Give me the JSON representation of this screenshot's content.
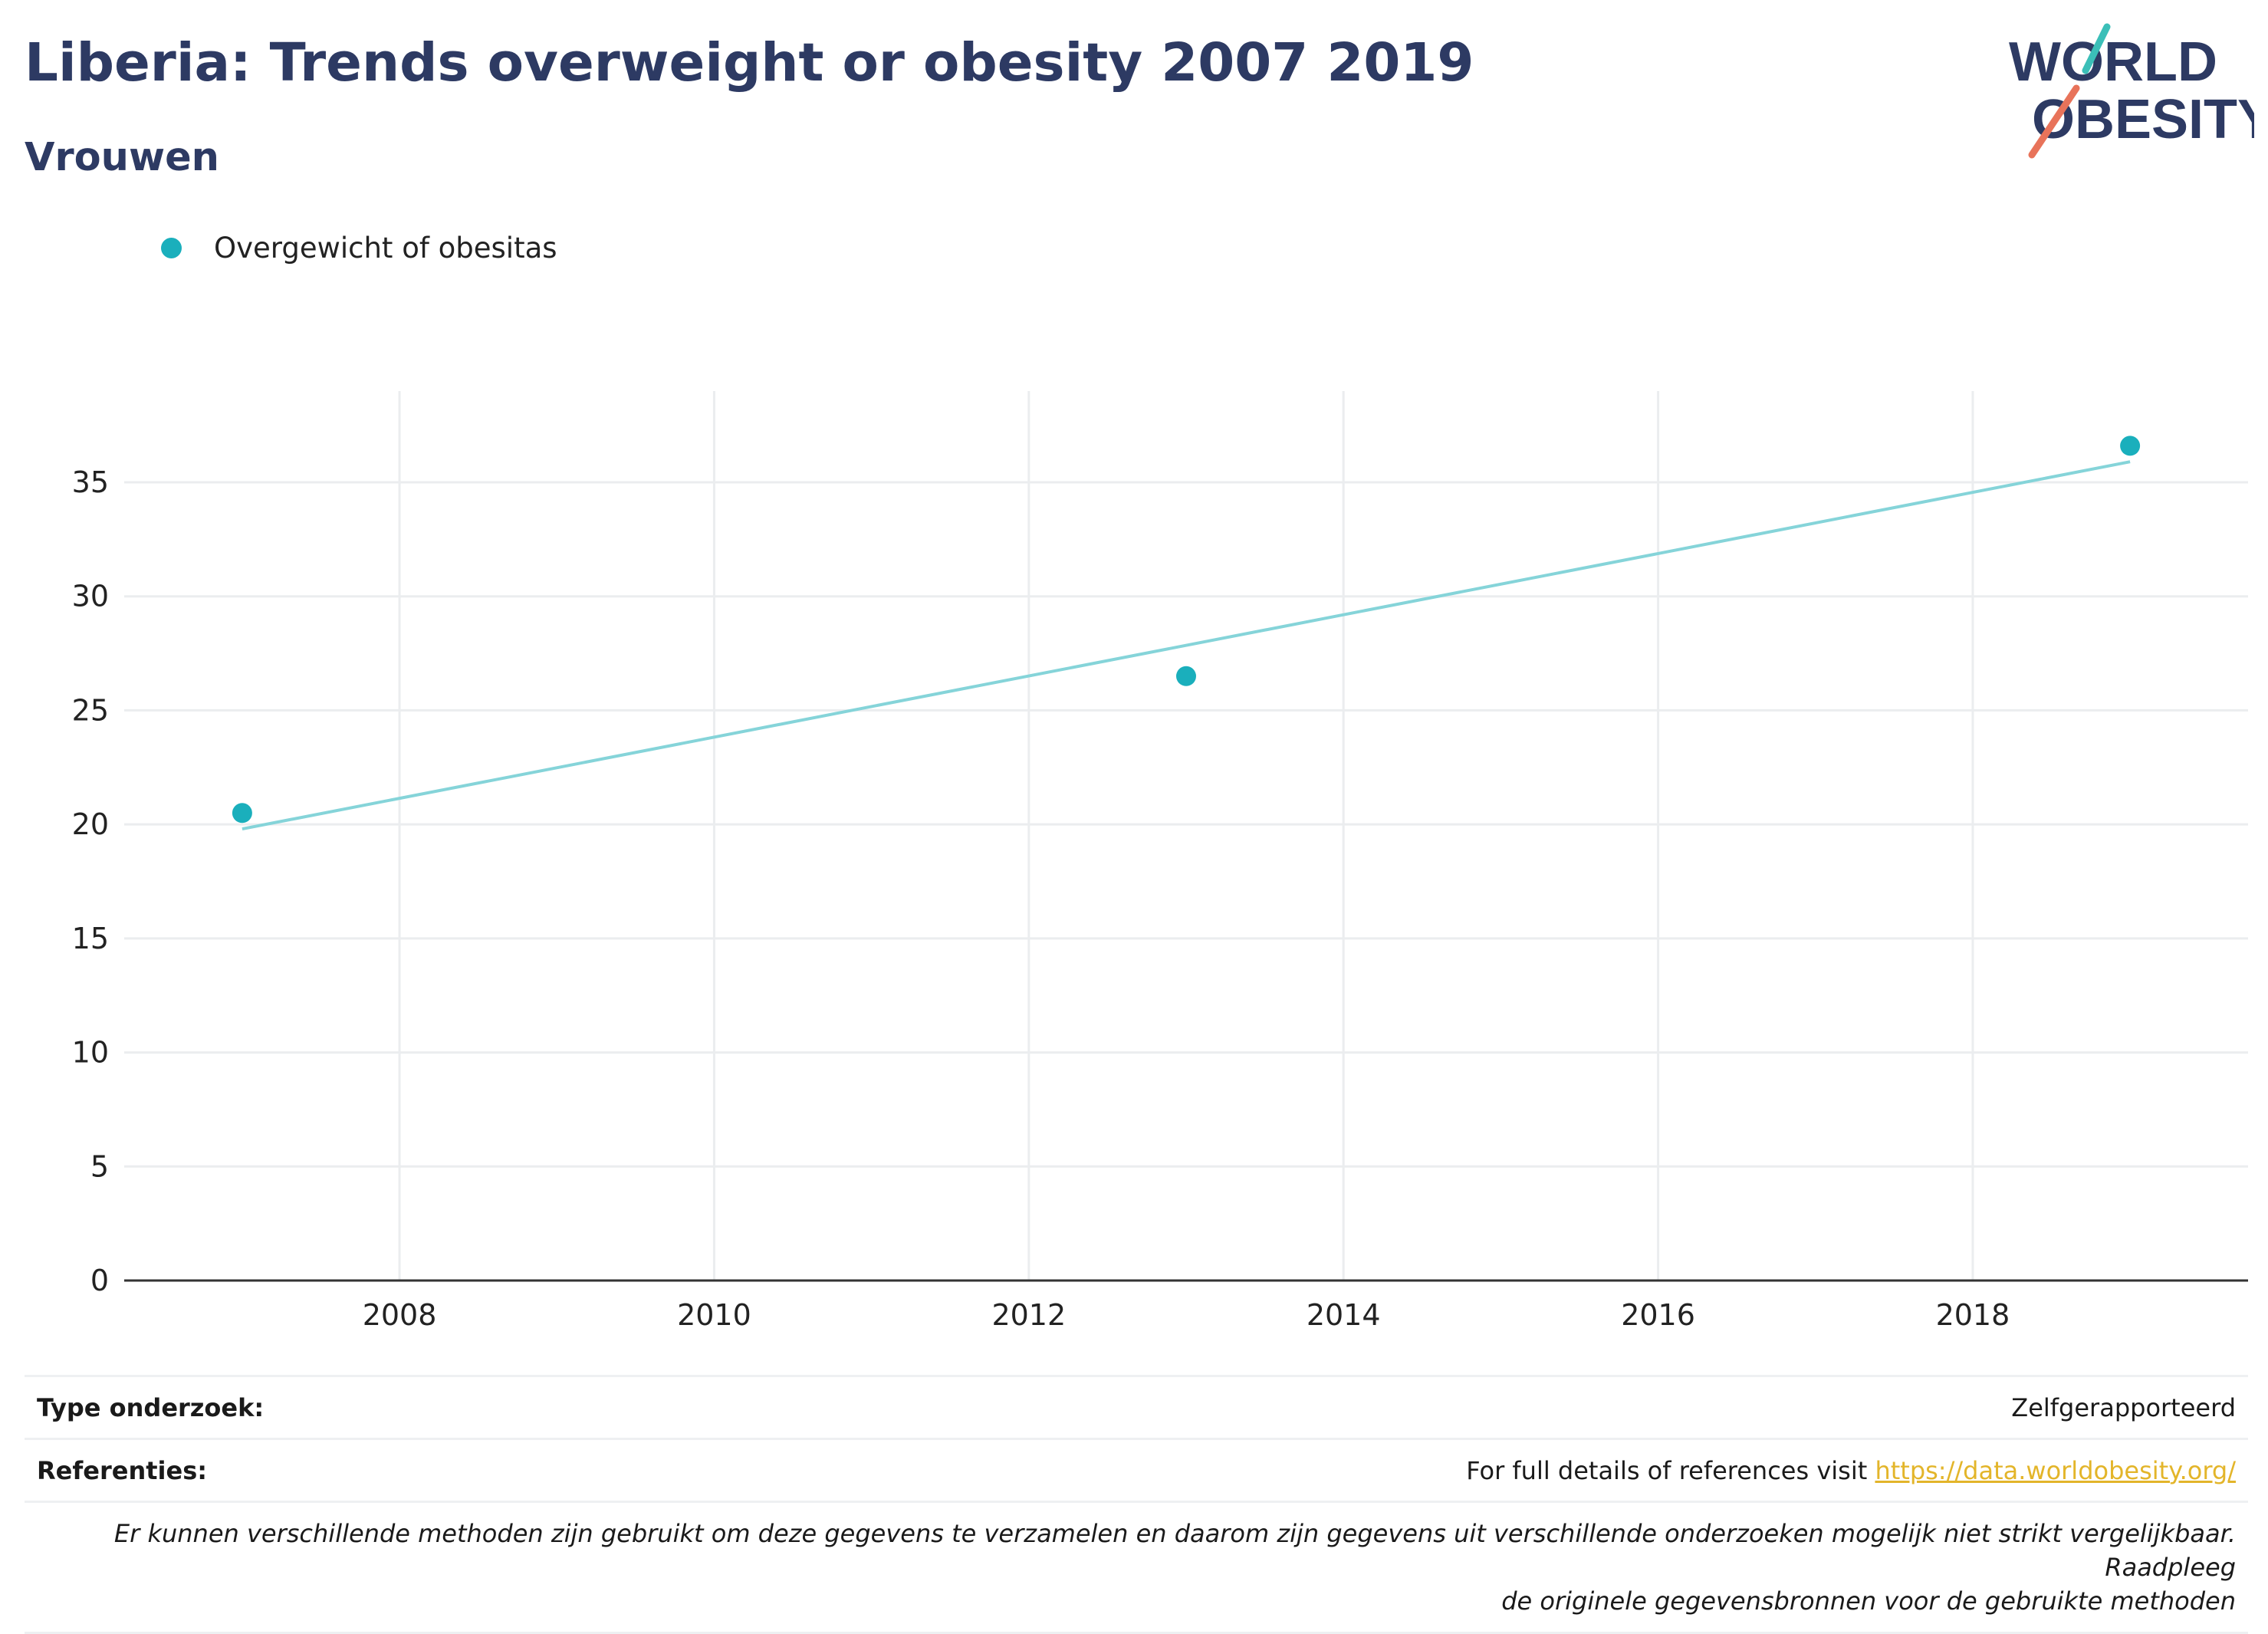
{
  "header": {
    "title": "Liberia: Trends overweight or obesity 2007 2019",
    "subtitle": "Vrouwen"
  },
  "logo": {
    "line1": "WORLD",
    "line2": "OBESITY",
    "colors": {
      "text": "#2d3a63",
      "slash_top": "#3bbfb8",
      "slash_bottom": "#e8735a"
    }
  },
  "chart_data": {
    "type": "scatter",
    "series": [
      {
        "name": "Overgewicht of obesitas",
        "color": "#1aafbc",
        "x": [
          2007,
          2013,
          2019
        ],
        "values": [
          20.5,
          26.5,
          36.6
        ]
      }
    ],
    "trendline": {
      "color": "#85d4d9",
      "x": [
        2007,
        2019
      ],
      "values": [
        19.8,
        35.9
      ]
    },
    "xlim": [
      2006.25,
      2019.75
    ],
    "ylim": [
      0,
      39
    ],
    "x_ticks": [
      "2008",
      "2010",
      "2012",
      "2014",
      "2016",
      "2018"
    ],
    "y_ticks": [
      "0",
      "5",
      "10",
      "15",
      "20",
      "25",
      "30",
      "35"
    ],
    "grid": true,
    "legend": "top-left",
    "xlabel": "",
    "ylabel": ""
  },
  "footer": {
    "study_type_label": "Type onderzoek:",
    "study_type_value": "Zelfgerapporteerd",
    "references_label": "Referenties:",
    "references_text": "For full details of references visit ",
    "references_link": "https://data.worldobesity.org/",
    "note_line1": "Er kunnen verschillende methoden zijn gebruikt om deze gegevens te verzamelen en daarom zijn gegevens uit verschillende onderzoeken mogelijk niet strikt vergelijkbaar. Raadpleeg",
    "note_line2": "de originele gegevensbronnen voor de gebruikte methoden"
  }
}
